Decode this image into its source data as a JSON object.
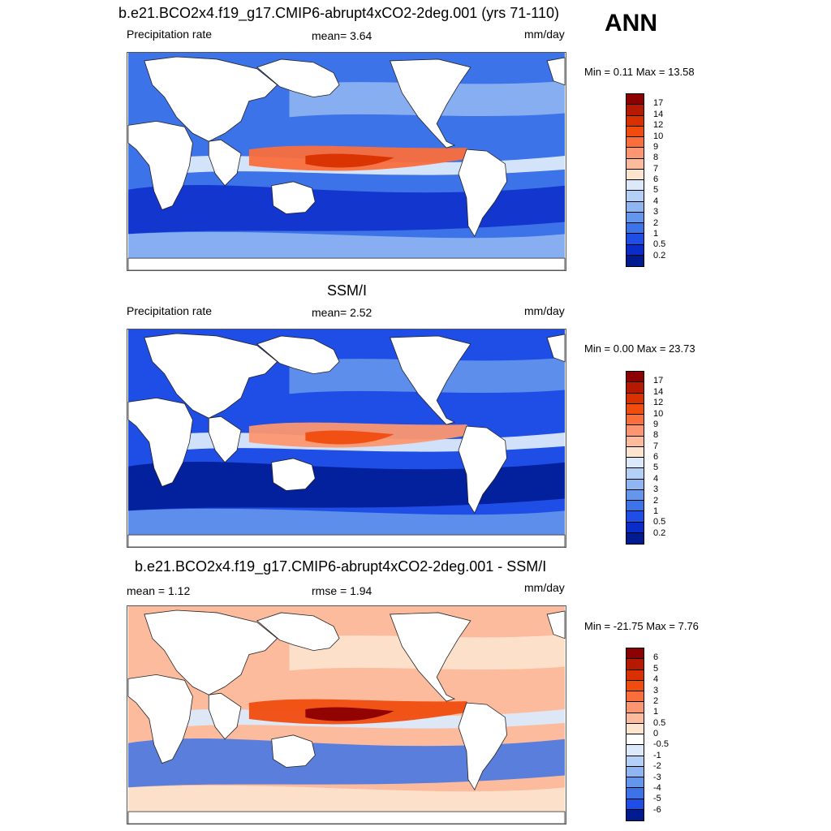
{
  "season": "ANN",
  "panels": [
    {
      "title": "b.e21.BCO2x4.f19_g17.CMIP6-abrupt4xCO2-2deg.001 (yrs 71-110)",
      "left_label": "Precipitation rate",
      "center_label": "mean=   3.64",
      "units": "mm/day",
      "minmax": "Min =   0.11 Max =  13.58",
      "colorbar": {
        "labels": [
          "17",
          "14",
          "12",
          "10",
          "9",
          "8",
          "7",
          "6",
          "5",
          "4",
          "3",
          "2",
          "1",
          "0.5",
          "0.2"
        ],
        "colors": [
          "#8b0000",
          "#b51a00",
          "#d93000",
          "#f04c0e",
          "#fa6e3c",
          "#fc9670",
          "#fdbb9d",
          "#fde4cf",
          "#dbe9fb",
          "#b4d0f7",
          "#8fb5f2",
          "#6496ec",
          "#3c73e8",
          "#1f4ee6",
          "#0a2cc9",
          "#001a8f"
        ]
      },
      "map_colors": {
        "base": "#3c73e8",
        "light": "#8fb5f2",
        "pale": "#dbe9fb",
        "dark": "#0a2cc9",
        "warm": "#fa6e3c",
        "hot": "#d93000"
      }
    },
    {
      "title": "SSM/I",
      "left_label": "Precipitation rate",
      "center_label": "mean=   2.52",
      "units": "mm/day",
      "minmax": "Min =   0.00 Max =  23.73",
      "colorbar": {
        "labels": [
          "17",
          "14",
          "12",
          "10",
          "9",
          "8",
          "7",
          "6",
          "5",
          "4",
          "3",
          "2",
          "1",
          "0.5",
          "0.2"
        ],
        "colors": [
          "#8b0000",
          "#b51a00",
          "#d93000",
          "#f04c0e",
          "#fa6e3c",
          "#fc9670",
          "#fdbb9d",
          "#fde4cf",
          "#dbe9fb",
          "#b4d0f7",
          "#8fb5f2",
          "#6496ec",
          "#3c73e8",
          "#1f4ee6",
          "#0a2cc9",
          "#001a8f"
        ]
      },
      "map_colors": {
        "base": "#1f4ee6",
        "light": "#6496ec",
        "pale": "#dbe9fb",
        "dark": "#001a8f",
        "warm": "#fc9670",
        "hot": "#f04c0e"
      }
    },
    {
      "title": "b.e21.BCO2x4.f19_g17.CMIP6-abrupt4xCO2-2deg.001 - SSM/I",
      "left_label": "mean =   1.12",
      "center_label": "rmse =   1.94",
      "units": "mm/day",
      "minmax": "Min = -21.75 Max =   7.76",
      "colorbar": {
        "labels": [
          "6",
          "5",
          "4",
          "3",
          "2",
          "1",
          "0.5",
          "0",
          "-0.5",
          "-1",
          "-2",
          "-3",
          "-4",
          "-5",
          "-6"
        ],
        "colors": [
          "#8b0000",
          "#b51a00",
          "#d93000",
          "#f04c0e",
          "#fa6e3c",
          "#fc9670",
          "#fdbb9d",
          "#fde4cf",
          "#ffffff",
          "#dbe9fb",
          "#b4d0f7",
          "#8fb5f2",
          "#6496ec",
          "#3c73e8",
          "#1f4ee6",
          "#001a8f"
        ]
      },
      "map_colors": {
        "base": "#fdbb9d",
        "light": "#fde4cf",
        "pale": "#dbe9fb",
        "dark": "#3c73e8",
        "warm": "#f04c0e",
        "hot": "#8b0000"
      }
    }
  ]
}
